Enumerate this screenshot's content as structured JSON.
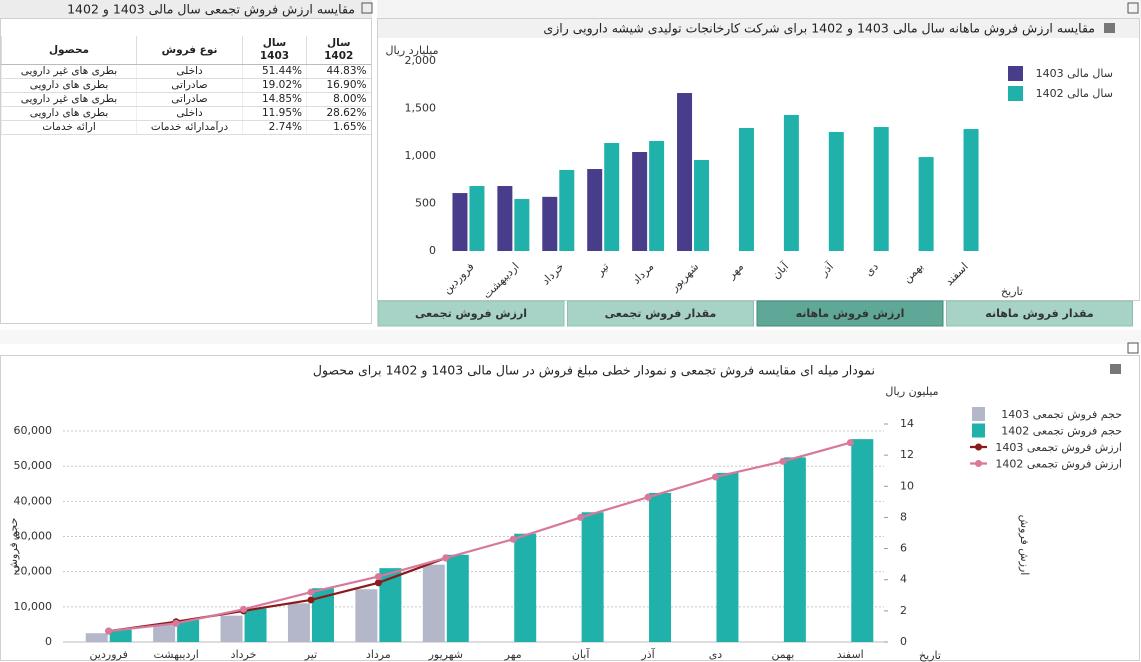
{
  "table_panel": {
    "title": "مقایسه ارزش فروش تجمعی سال مالی 1403 و 1402",
    "columns": [
      "سال 1402",
      "سال 1403",
      "نوع فروش",
      "محصول"
    ],
    "rows": [
      [
        "44.83%",
        "51.44%",
        "داخلی",
        "بطری های غیر دارویی"
      ],
      [
        "16.90%",
        "19.02%",
        "صادراتی",
        "بطری های دارویی"
      ],
      [
        "8.00%",
        "14.85%",
        "صادراتی",
        "بطری های غیر دارویی"
      ],
      [
        "28.62%",
        "11.95%",
        "داخلی",
        "بطری های دارویی"
      ],
      [
        "1.65%",
        "2.74%",
        "درآمدارائه خدمات",
        "ارائه خدمات"
      ]
    ]
  },
  "tabs": [
    "ارزش فروش تجمعی",
    "مقدار فروش تجمعی",
    "ارزش فروش ماهانه",
    "مقدار فروش ماهانه"
  ],
  "active_tab": 2,
  "chart_data": [
    {
      "type": "bar",
      "title": "مقایسه ارزش فروش ماهانه سال مالی 1403 و 1402 برای شرکت کارخانجات تولیدی شیشه دارویی رازی",
      "y_unit": "میلیارد ریال",
      "x_label": "تاریخ",
      "categories": [
        "فروردین",
        "اردیبهشت",
        "خرداد",
        "تیر",
        "مرداد",
        "شهریور",
        "مهر",
        "آبان",
        "آذر",
        "دی",
        "بهمن",
        "اسفند"
      ],
      "series": [
        {
          "name": "سال مالی 1403",
          "color": "#483d8b",
          "values": [
            610,
            684,
            570,
            863,
            1042,
            1663,
            null,
            null,
            null,
            null,
            null,
            null
          ]
        },
        {
          "name": "سال مالی 1402",
          "color": "#20b2aa",
          "values": [
            684,
            547,
            853,
            1137,
            1158,
            958,
            1295,
            1432,
            1253,
            1305,
            989,
            1284
          ]
        }
      ],
      "ylim": [
        0,
        2000
      ],
      "yticks": [
        0,
        500,
        {
          "value": 1000,
          "label": "1,000"
        },
        {
          "value": 1500,
          "label": "1,500"
        },
        {
          "value": 2000,
          "label": "2,000"
        }
      ],
      "grid": false,
      "legend": "right"
    },
    {
      "type": "combo",
      "title": "نمودار میله ای مقایسه فروش تجمعی و نمودار خطی مبلغ فروش در سال مالی 1403 و 1402 برای محصول",
      "y_label": "حجم فروش",
      "y2_label": "ارزش فروش",
      "y2_unit": "میلیون ریال",
      "x_label": "تاریخ",
      "categories": [
        "فروردین",
        "اردیبهشت",
        "خرداد",
        "تیر",
        "مرداد",
        "شهریور",
        "مهر",
        "آبان",
        "آذر",
        "دی",
        "بهمن",
        "اسفند"
      ],
      "series": [
        {
          "name": "حجم فروش تجمعی 1403",
          "type": "bar",
          "color": "#b4b7c9",
          "values": [
            2500,
            5000,
            7500,
            11000,
            15000,
            22000,
            null,
            null,
            null,
            null,
            null,
            null
          ]
        },
        {
          "name": "حجم فروش تجمعی 1402",
          "type": "bar",
          "color": "#20b2aa",
          "values": [
            3500,
            6300,
            9500,
            15300,
            21000,
            24800,
            30800,
            36900,
            42400,
            48100,
            52500,
            57700
          ]
        },
        {
          "name": "ارزش فروش تجمعی 1403",
          "type": "line",
          "axis": "y2",
          "color": "#8b1a1a",
          "values": [
            0.7,
            1.3,
            2.0,
            2.7,
            3.8,
            5.4,
            null,
            null,
            null,
            null,
            null,
            null
          ]
        },
        {
          "name": "ارزش فروش تجمعی 1402",
          "type": "line",
          "axis": "y2",
          "color": "#d8789a",
          "values": [
            0.7,
            1.2,
            2.1,
            3.2,
            4.2,
            5.4,
            6.6,
            8.0,
            9.3,
            10.6,
            11.6,
            12.8
          ]
        }
      ],
      "ylim": [
        0,
        62000
      ],
      "yticks": [
        0,
        {
          "value": 10000,
          "label": "10,000"
        },
        {
          "value": 20000,
          "label": "20,000"
        },
        {
          "value": 30000,
          "label": "30,000"
        },
        {
          "value": 40000,
          "label": "40,000"
        },
        {
          "value": 50000,
          "label": "50,000"
        },
        {
          "value": 60000,
          "label": "60,000"
        }
      ],
      "y2lim": [
        0,
        14
      ],
      "y2ticks": [
        0,
        2,
        4,
        6,
        8,
        10,
        12,
        14
      ],
      "grid": true,
      "legend": "right"
    }
  ]
}
